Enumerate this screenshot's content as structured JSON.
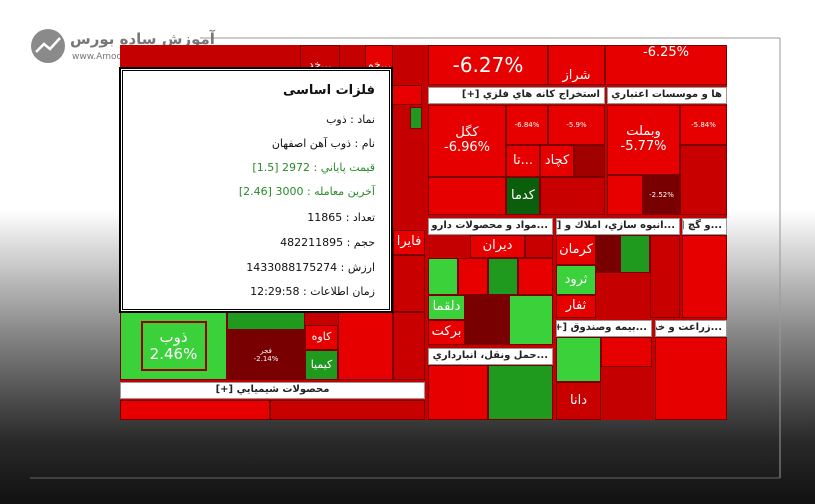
{
  "logo": {
    "name": "آموزش ساده بورس",
    "url": "www.Amoozesh-Boors.com"
  },
  "tooltip": {
    "title": "فلزات اساسی",
    "lines": [
      "نماد : ذوب",
      "نام : ذوب آهن اصفهان",
      "قيمت پاياني : 2972 [1.5]",
      "آخرين معامله : 3000 [2.46]",
      "تعداد : 11865",
      "حجم : 482211895",
      "ارزش : 1433088175274",
      "زمان اطلاعات : 12:29:58"
    ]
  },
  "sectors": [
    "استخراج كانه هاي فلزي [+]",
    "ها و موسسات اعتباري [+]",
    "...مواد و محصولات دارو [+]",
    "...انبوه سازي، املاك و [+]",
    "...و گچ [+]",
    "...بيمه وصندوق [+]",
    "...زراعت و خدم [+]",
    "...حمل ونقل، انبارداري و [+]",
    "محصولات شيميايي [+]"
  ],
  "tiles": [
    {
      "symbol": "ذوب",
      "change": "2.46%"
    },
    {
      "change": "-6.27%"
    },
    {
      "symbol": "شراز"
    },
    {
      "change": "-6.25%"
    },
    {
      "symbol": "كگل",
      "change": "-6.96%"
    },
    {
      "symbol": "وبملت",
      "change": "-5.77%"
    },
    {
      "symbol": "كچاد"
    },
    {
      "symbol": "تا..."
    },
    {
      "symbol": "كدما"
    },
    {
      "change": "-6.84%"
    },
    {
      "change": "-5.9%"
    },
    {
      "change": "-5.84%"
    },
    {
      "change": "-2.52%"
    },
    {
      "symbol": "ديران"
    },
    {
      "symbol": "كرمان"
    },
    {
      "symbol": "ثرود"
    },
    {
      "symbol": "ثفار"
    },
    {
      "symbol": "دلقما"
    },
    {
      "symbol": "بركت"
    },
    {
      "symbol": "كاوه"
    },
    {
      "symbol": "كيميا"
    },
    {
      "symbol": "فجر",
      "change": "-2.14%"
    },
    {
      "symbol": "فايرا"
    },
    {
      "symbol": "دانا"
    },
    {
      "symbol": "خد..."
    },
    {
      "symbol": "خم..."
    }
  ]
}
